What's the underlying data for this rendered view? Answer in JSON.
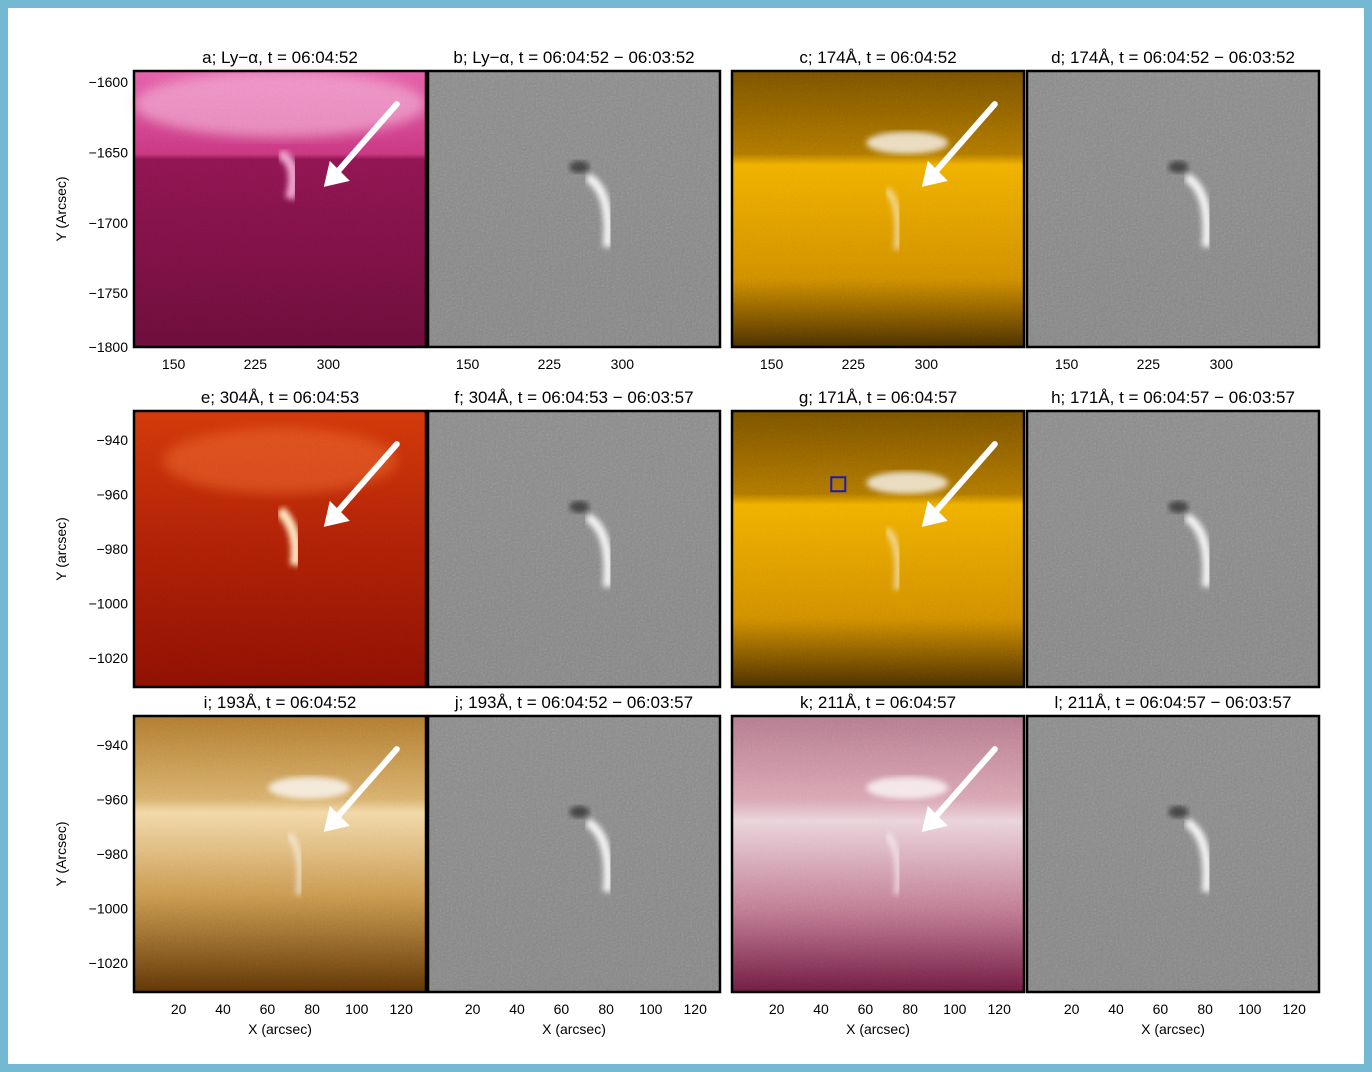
{
  "figure": {
    "border_color": "#74b9d3",
    "rows": [
      {
        "y_label": "Y (Arcsec)",
        "y_ticks": [
          "-1600",
          "-1650",
          "-1700",
          "-1750",
          "-1800"
        ],
        "x_ticks": [
          "150",
          "225",
          "300"
        ],
        "x_label": "",
        "panels": [
          {
            "title": "a; Ly−α, t =  06:04:52",
            "colormap": "pink",
            "difference": false,
            "arrow": true
          },
          {
            "title": "b; Ly−α, t =  06:04:52 − 06:03:52",
            "colormap": "gray",
            "difference": true,
            "arrow": false
          },
          {
            "title": "c; 174Å, t =  06:04:52",
            "colormap": "gold",
            "difference": false,
            "arrow": true
          },
          {
            "title": "d; 174Å, t =  06:04:52 − 06:03:52",
            "colormap": "gray",
            "difference": true,
            "arrow": false
          }
        ]
      },
      {
        "y_label": "Y (arcsec)",
        "y_ticks": [
          "-940",
          "-960",
          "-980",
          "-1000",
          "-1020"
        ],
        "x_ticks": [],
        "x_label": "",
        "panels": [
          {
            "title": "e; 304Å, t =  06:04:53",
            "colormap": "red",
            "difference": false,
            "arrow": true
          },
          {
            "title": "f; 304Å, t =  06:04:53 − 06:03:57",
            "colormap": "gray",
            "difference": true,
            "arrow": false
          },
          {
            "title": "g; 171Å, t =  06:04:57",
            "colormap": "gold",
            "difference": false,
            "arrow": true,
            "marker_box": true
          },
          {
            "title": "h; 171Å, t =  06:04:57 − 06:03:57",
            "colormap": "gray",
            "difference": true,
            "arrow": false
          }
        ]
      },
      {
        "y_label": "Y (Arcsec)",
        "y_ticks": [
          "-940",
          "-960",
          "-980",
          "-1000",
          "-1020"
        ],
        "x_ticks": [
          "20",
          "40",
          "60",
          "80",
          "100",
          "120"
        ],
        "x_label": "X (arcsec)",
        "panels": [
          {
            "title": "i; 193Å, t =  06:04:52",
            "colormap": "brown",
            "difference": false,
            "arrow": true
          },
          {
            "title": "j; 193Å, t =  06:04:52 − 06:03:57",
            "colormap": "gray",
            "difference": true,
            "arrow": false
          },
          {
            "title": "k; 211Å, t =  06:04:57",
            "colormap": "mauve",
            "difference": false,
            "arrow": true
          },
          {
            "title": "l; 211Å, t =  06:04:57 − 06:03:57",
            "colormap": "gray",
            "difference": true,
            "arrow": false
          }
        ]
      }
    ]
  }
}
